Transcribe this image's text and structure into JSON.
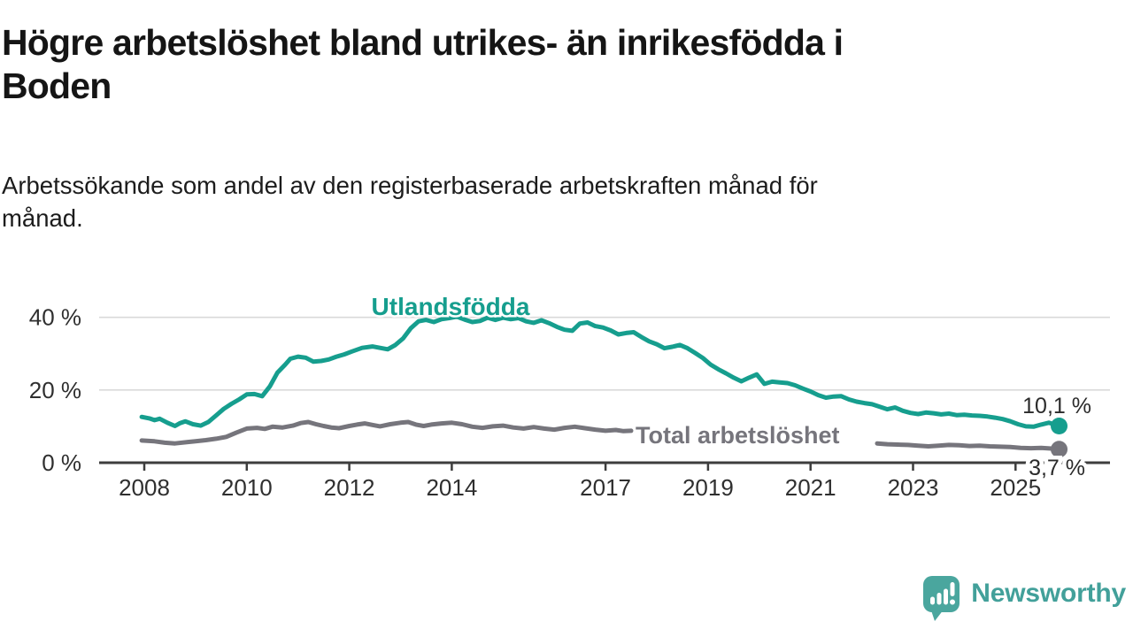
{
  "header": {
    "title_lines": [
      "Högre arbetslöshet bland utrikes- än inrikesfödda i",
      "Boden"
    ],
    "subtitle_lines": [
      "Arbetssökande som andel av den registerbaserade arbetskraften månad för",
      "månad."
    ]
  },
  "chart_data": {
    "type": "line",
    "unit": "%",
    "grid": true,
    "legend_position": "inline-labels",
    "x_axis": {
      "label": "",
      "range": [
        2007.8,
        2026.2
      ]
    },
    "y_axis": {
      "label": "",
      "range": [
        0,
        44
      ]
    },
    "x_ticks": [
      {
        "v": 2008,
        "label": "2008"
      },
      {
        "v": 2010,
        "label": "2010"
      },
      {
        "v": 2012,
        "label": "2012"
      },
      {
        "v": 2014,
        "label": "2014"
      },
      {
        "v": 2017,
        "label": "2017"
      },
      {
        "v": 2019,
        "label": "2019"
      },
      {
        "v": 2021,
        "label": "2021"
      },
      {
        "v": 2023,
        "label": "2023"
      },
      {
        "v": 2025,
        "label": "2025"
      }
    ],
    "y_ticks": [
      {
        "v": 0,
        "label": "0 %"
      },
      {
        "v": 20,
        "label": "20 %"
      },
      {
        "v": 40,
        "label": "40 %"
      }
    ],
    "series": [
      {
        "name": "Utlandsfödda",
        "color": "#169e8e",
        "end_value_label": "10,1 %",
        "segments": [
          [
            [
              2007.95,
              12.6
            ],
            [
              2008.1,
              12.2
            ],
            [
              2008.2,
              11.7
            ],
            [
              2008.3,
              12.1
            ],
            [
              2008.45,
              11.0
            ],
            [
              2008.6,
              10.1
            ],
            [
              2008.7,
              10.9
            ],
            [
              2008.8,
              11.4
            ],
            [
              2008.95,
              10.6
            ],
            [
              2009.1,
              10.2
            ],
            [
              2009.25,
              11.2
            ],
            [
              2009.4,
              13.0
            ],
            [
              2009.55,
              14.8
            ],
            [
              2009.7,
              16.2
            ],
            [
              2009.85,
              17.4
            ],
            [
              2010.0,
              18.8
            ],
            [
              2010.15,
              18.9
            ],
            [
              2010.3,
              18.3
            ],
            [
              2010.45,
              21.0
            ],
            [
              2010.6,
              24.8
            ],
            [
              2010.75,
              27.0
            ],
            [
              2010.85,
              28.6
            ],
            [
              2011.0,
              29.2
            ],
            [
              2011.15,
              28.9
            ],
            [
              2011.3,
              27.8
            ],
            [
              2011.45,
              28.0
            ],
            [
              2011.6,
              28.4
            ],
            [
              2011.75,
              29.2
            ],
            [
              2011.9,
              29.8
            ],
            [
              2012.05,
              30.6
            ],
            [
              2012.25,
              31.6
            ],
            [
              2012.45,
              32.0
            ],
            [
              2012.6,
              31.6
            ],
            [
              2012.75,
              31.2
            ],
            [
              2012.9,
              32.4
            ],
            [
              2013.05,
              34.2
            ],
            [
              2013.2,
              37.0
            ],
            [
              2013.35,
              38.9
            ],
            [
              2013.5,
              39.3
            ],
            [
              2013.65,
              38.7
            ],
            [
              2013.8,
              39.5
            ],
            [
              2013.95,
              39.8
            ],
            [
              2014.1,
              40.2
            ],
            [
              2014.25,
              39.4
            ],
            [
              2014.4,
              38.7
            ],
            [
              2014.55,
              39.0
            ],
            [
              2014.7,
              39.9
            ],
            [
              2014.85,
              39.3
            ],
            [
              2015.0,
              39.9
            ],
            [
              2015.15,
              39.5
            ],
            [
              2015.3,
              39.8
            ],
            [
              2015.45,
              38.9
            ],
            [
              2015.6,
              38.5
            ],
            [
              2015.75,
              39.2
            ],
            [
              2015.9,
              38.4
            ],
            [
              2016.05,
              37.4
            ],
            [
              2016.2,
              36.6
            ],
            [
              2016.35,
              36.3
            ],
            [
              2016.5,
              38.3
            ],
            [
              2016.65,
              38.6
            ],
            [
              2016.8,
              37.6
            ],
            [
              2016.95,
              37.2
            ],
            [
              2017.1,
              36.4
            ],
            [
              2017.25,
              35.3
            ],
            [
              2017.4,
              35.7
            ],
            [
              2017.55,
              35.9
            ],
            [
              2017.7,
              34.6
            ],
            [
              2017.85,
              33.4
            ],
            [
              2018.0,
              32.6
            ],
            [
              2018.15,
              31.5
            ],
            [
              2018.3,
              31.9
            ],
            [
              2018.45,
              32.4
            ],
            [
              2018.6,
              31.5
            ],
            [
              2018.75,
              30.2
            ],
            [
              2018.9,
              28.8
            ],
            [
              2019.05,
              27.0
            ],
            [
              2019.2,
              25.7
            ],
            [
              2019.35,
              24.6
            ],
            [
              2019.5,
              23.4
            ],
            [
              2019.65,
              22.4
            ],
            [
              2019.8,
              23.4
            ],
            [
              2019.95,
              24.3
            ],
            [
              2020.1,
              21.7
            ],
            [
              2020.25,
              22.3
            ],
            [
              2020.4,
              22.1
            ],
            [
              2020.55,
              21.9
            ],
            [
              2020.7,
              21.3
            ],
            [
              2020.85,
              20.4
            ],
            [
              2021.0,
              19.6
            ],
            [
              2021.15,
              18.6
            ],
            [
              2021.3,
              17.9
            ],
            [
              2021.45,
              18.2
            ],
            [
              2021.6,
              18.3
            ],
            [
              2021.75,
              17.4
            ],
            [
              2021.9,
              16.8
            ],
            [
              2022.05,
              16.4
            ],
            [
              2022.2,
              16.1
            ],
            [
              2022.35,
              15.4
            ],
            [
              2022.5,
              14.7
            ],
            [
              2022.65,
              15.2
            ],
            [
              2022.8,
              14.3
            ],
            [
              2022.95,
              13.7
            ],
            [
              2023.1,
              13.4
            ],
            [
              2023.25,
              13.8
            ],
            [
              2023.4,
              13.6
            ],
            [
              2023.55,
              13.3
            ],
            [
              2023.7,
              13.5
            ],
            [
              2023.85,
              13.1
            ],
            [
              2024.0,
              13.2
            ],
            [
              2024.15,
              13.0
            ],
            [
              2024.3,
              12.9
            ],
            [
              2024.45,
              12.7
            ],
            [
              2024.6,
              12.4
            ],
            [
              2024.75,
              12.0
            ],
            [
              2024.9,
              11.4
            ],
            [
              2025.05,
              10.6
            ],
            [
              2025.2,
              10.0
            ],
            [
              2025.35,
              9.9
            ],
            [
              2025.5,
              10.5
            ],
            [
              2025.65,
              11.0
            ],
            [
              2025.75,
              10.6
            ],
            [
              2025.85,
              10.1
            ]
          ]
        ]
      },
      {
        "name": "Total arbetslöshet",
        "color": "#76757c",
        "end_value_label": "3,7 %",
        "segments": [
          [
            [
              2007.95,
              6.1
            ],
            [
              2008.2,
              5.9
            ],
            [
              2008.4,
              5.5
            ],
            [
              2008.6,
              5.3
            ],
            [
              2008.85,
              5.7
            ],
            [
              2009.0,
              5.9
            ],
            [
              2009.2,
              6.2
            ],
            [
              2009.4,
              6.6
            ],
            [
              2009.6,
              7.1
            ],
            [
              2009.8,
              8.3
            ],
            [
              2010.0,
              9.4
            ],
            [
              2010.2,
              9.6
            ],
            [
              2010.35,
              9.3
            ],
            [
              2010.5,
              9.9
            ],
            [
              2010.7,
              9.7
            ],
            [
              2010.9,
              10.2
            ],
            [
              2011.05,
              10.9
            ],
            [
              2011.2,
              11.2
            ],
            [
              2011.35,
              10.6
            ],
            [
              2011.5,
              10.1
            ],
            [
              2011.65,
              9.7
            ],
            [
              2011.8,
              9.5
            ],
            [
              2012.0,
              10.1
            ],
            [
              2012.15,
              10.5
            ],
            [
              2012.3,
              10.8
            ],
            [
              2012.45,
              10.4
            ],
            [
              2012.6,
              10.0
            ],
            [
              2012.8,
              10.6
            ],
            [
              2013.0,
              11.0
            ],
            [
              2013.15,
              11.2
            ],
            [
              2013.3,
              10.5
            ],
            [
              2013.45,
              10.1
            ],
            [
              2013.6,
              10.5
            ],
            [
              2013.8,
              10.8
            ],
            [
              2014.0,
              11.0
            ],
            [
              2014.2,
              10.6
            ],
            [
              2014.4,
              9.9
            ],
            [
              2014.6,
              9.6
            ],
            [
              2014.8,
              10.0
            ],
            [
              2015.0,
              10.2
            ],
            [
              2015.2,
              9.7
            ],
            [
              2015.4,
              9.4
            ],
            [
              2015.6,
              9.8
            ],
            [
              2015.8,
              9.4
            ],
            [
              2016.0,
              9.1
            ],
            [
              2016.2,
              9.6
            ],
            [
              2016.4,
              9.9
            ],
            [
              2016.6,
              9.5
            ],
            [
              2016.8,
              9.1
            ],
            [
              2017.0,
              8.8
            ],
            [
              2017.2,
              9.0
            ],
            [
              2017.35,
              8.7
            ],
            [
              2017.5,
              8.8
            ]
          ],
          [
            [
              2022.3,
              5.3
            ],
            [
              2022.5,
              5.1
            ],
            [
              2022.7,
              5.0
            ],
            [
              2022.9,
              4.9
            ],
            [
              2023.1,
              4.7
            ],
            [
              2023.3,
              4.5
            ],
            [
              2023.5,
              4.7
            ],
            [
              2023.7,
              4.9
            ],
            [
              2023.9,
              4.8
            ],
            [
              2024.1,
              4.6
            ],
            [
              2024.3,
              4.7
            ],
            [
              2024.5,
              4.5
            ],
            [
              2024.7,
              4.4
            ],
            [
              2024.9,
              4.3
            ],
            [
              2025.1,
              4.1
            ],
            [
              2025.3,
              4.0
            ],
            [
              2025.5,
              4.1
            ],
            [
              2025.7,
              3.9
            ],
            [
              2025.85,
              3.7
            ]
          ]
        ]
      }
    ]
  },
  "branding": {
    "logo_text": "Newsworthy"
  }
}
